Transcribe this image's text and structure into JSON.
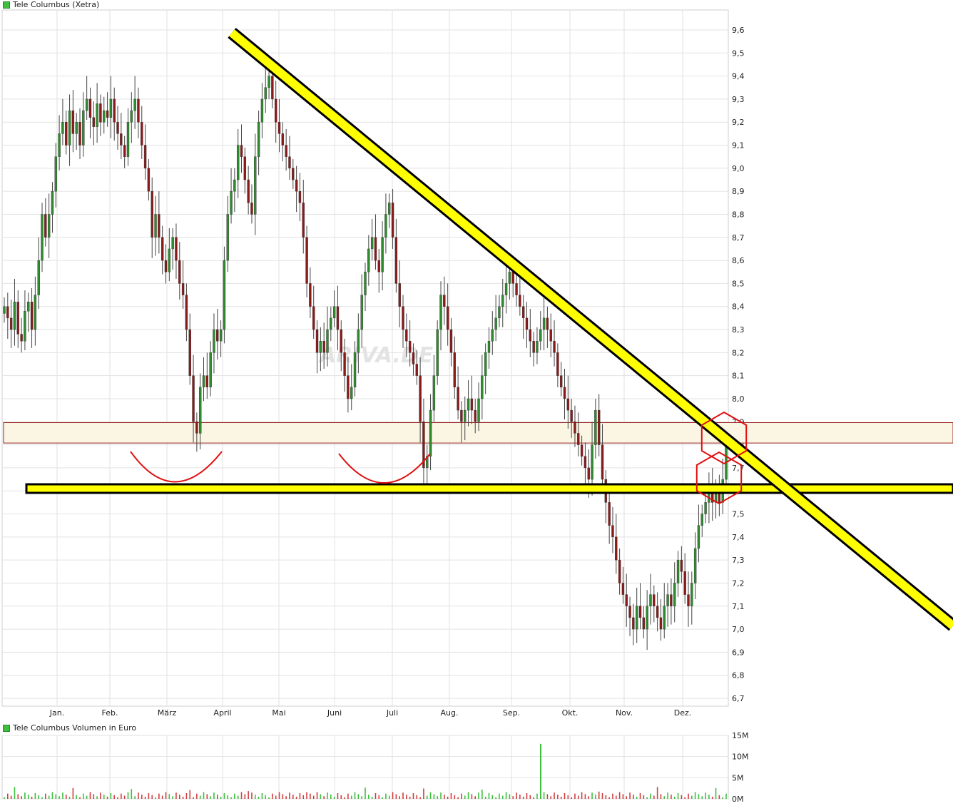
{
  "chart_data": [
    {
      "type": "candlestick",
      "title": "Tele Columbus (Xetra)",
      "series_color": "#3fbf3f",
      "up_color": "#2e8b2e",
      "down_color": "#8b1a1a",
      "watermark": "ARIVA.DE",
      "ylim": [
        6.65,
        9.65
      ],
      "y_ticks": [
        "9,6",
        "9,5",
        "9,4",
        "9,3",
        "9,2",
        "9,1",
        "9,0",
        "8,9",
        "8,8",
        "8,7",
        "8,6",
        "8,5",
        "8,4",
        "8,3",
        "8,2",
        "8,1",
        "8,0",
        "7,9",
        "7,8",
        "7,7",
        "7,6",
        "7,5",
        "7,4",
        "7,3",
        "7,2",
        "7,1",
        "7,0",
        "6,9",
        "6,8",
        "6,7"
      ],
      "x_labels": [
        "Jan.",
        "Feb.",
        "März",
        "April",
        "Mai",
        "Juni",
        "Juli",
        "Aug.",
        "Sep.",
        "Okt.",
        "Nov.",
        "Dez."
      ],
      "close": [
        8.4,
        8.35,
        8.3,
        8.42,
        8.28,
        8.25,
        8.38,
        8.42,
        8.3,
        8.45,
        8.6,
        8.8,
        8.7,
        8.8,
        8.9,
        9.05,
        9.15,
        9.2,
        9.1,
        9.25,
        9.15,
        9.2,
        9.1,
        9.25,
        9.3,
        9.22,
        9.18,
        9.28,
        9.2,
        9.25,
        9.22,
        9.3,
        9.2,
        9.15,
        9.1,
        9.05,
        9.2,
        9.25,
        9.3,
        9.2,
        9.1,
        9.0,
        8.9,
        8.7,
        8.8,
        8.7,
        8.6,
        8.55,
        8.65,
        8.7,
        8.6,
        8.5,
        8.45,
        8.3,
        8.1,
        7.9,
        7.85,
        8.05,
        8.1,
        8.05,
        8.2,
        8.3,
        8.25,
        8.3,
        8.6,
        8.8,
        8.9,
        8.95,
        9.1,
        9.05,
        8.95,
        8.85,
        8.8,
        9.05,
        9.2,
        9.3,
        9.35,
        9.4,
        9.3,
        9.2,
        9.15,
        9.1,
        9.05,
        9.0,
        8.95,
        8.9,
        8.85,
        8.7,
        8.5,
        8.4,
        8.3,
        8.2,
        8.25,
        8.2,
        8.3,
        8.35,
        8.4,
        8.3,
        8.2,
        8.1,
        8.0,
        8.05,
        8.2,
        8.3,
        8.45,
        8.55,
        8.65,
        8.7,
        8.6,
        8.55,
        8.7,
        8.8,
        8.85,
        8.7,
        8.5,
        8.4,
        8.3,
        8.25,
        8.2,
        8.15,
        8.1,
        7.9,
        7.7,
        7.75,
        7.95,
        8.1,
        8.3,
        8.45,
        8.4,
        8.3,
        8.2,
        8.05,
        7.95,
        7.9,
        7.95,
        8.0,
        7.95,
        7.9,
        8.0,
        8.1,
        8.2,
        8.25,
        8.3,
        8.35,
        8.4,
        8.45,
        8.5,
        8.55,
        8.5,
        8.45,
        8.4,
        8.35,
        8.3,
        8.25,
        8.2,
        8.25,
        8.3,
        8.35,
        8.3,
        8.25,
        8.2,
        8.1,
        8.05,
        8.0,
        7.95,
        7.9,
        7.85,
        7.8,
        7.75,
        7.7,
        7.65,
        7.8,
        7.95,
        7.8,
        7.65,
        7.55,
        7.45,
        7.4,
        7.3,
        7.2,
        7.15,
        7.1,
        7.05,
        7.0,
        7.1,
        7.05,
        7.0,
        7.1,
        7.15,
        7.1,
        7.05,
        7.0,
        7.1,
        7.15,
        7.1,
        7.2,
        7.3,
        7.25,
        7.15,
        7.1,
        7.2,
        7.35,
        7.45,
        7.5,
        7.55,
        7.6,
        7.55,
        7.6,
        7.55,
        7.65,
        7.8
      ],
      "volume_title": "Tele Columbus Volumen in Euro",
      "volume_ylim": [
        0,
        15
      ],
      "volume_ticks": [
        "15M",
        "10M",
        "5M",
        "0M"
      ],
      "volume_spike": {
        "month": "Sep.",
        "value": 13
      },
      "annotations": {
        "resistance_band": [
          7.82,
          7.89
        ],
        "support_line": 7.61,
        "trend_line_start": 9.6,
        "trend_line_end": 6.9
      }
    }
  ]
}
